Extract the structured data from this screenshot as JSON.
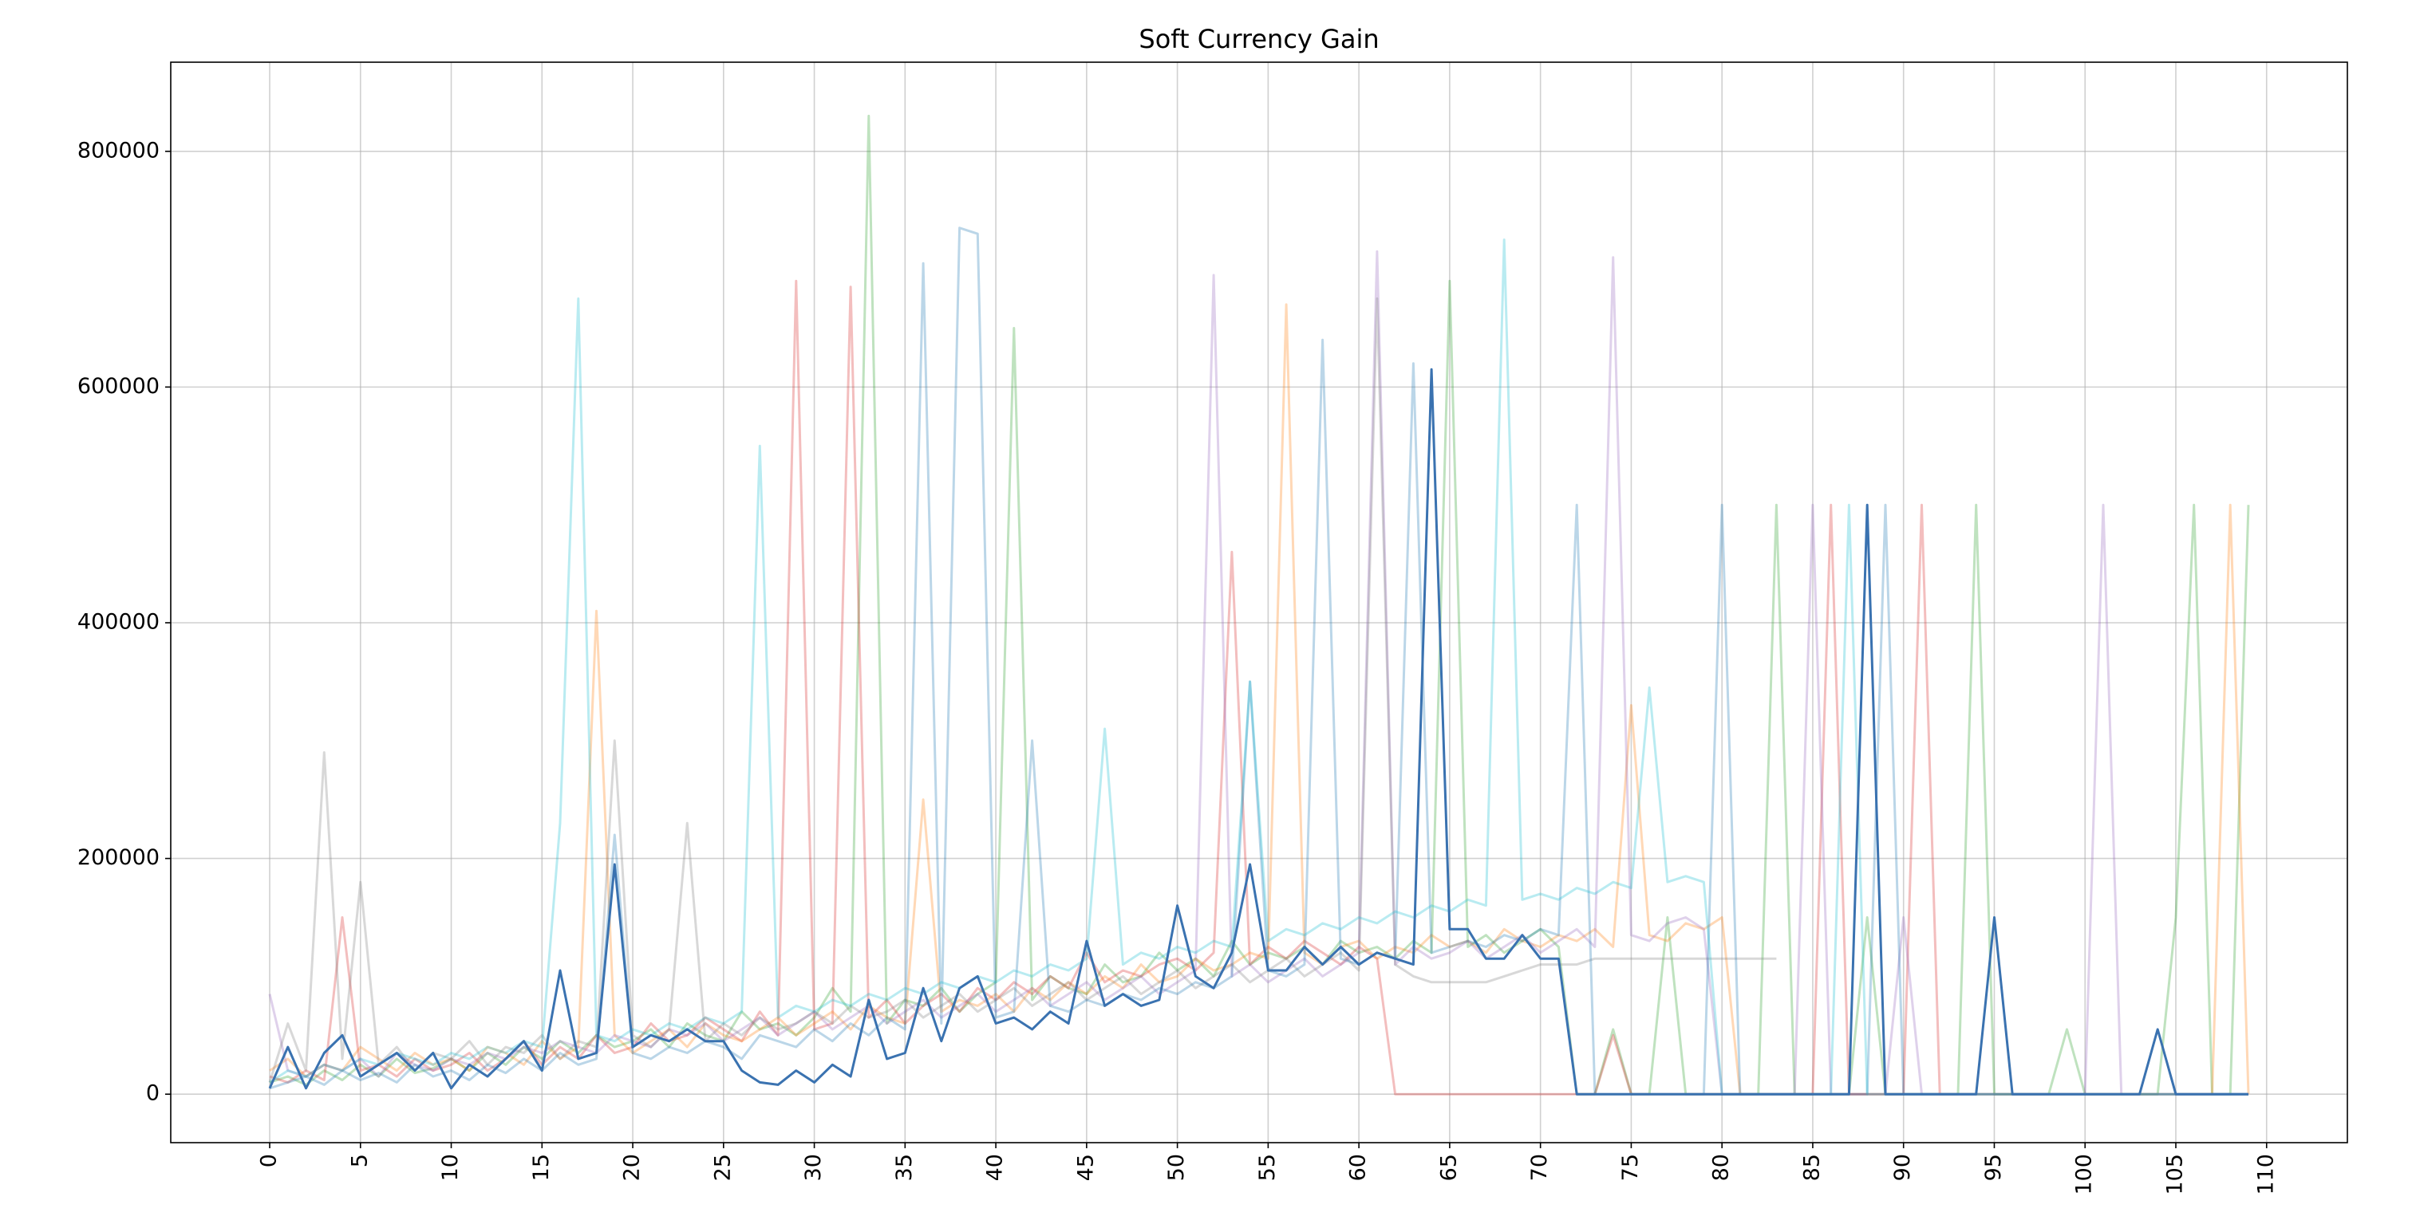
{
  "chart_data": {
    "type": "line",
    "title": "Soft Currency Gain",
    "x": [
      0,
      1,
      2,
      3,
      4,
      5,
      6,
      7,
      8,
      9,
      10,
      11,
      12,
      13,
      14,
      15,
      16,
      17,
      18,
      19,
      20,
      21,
      22,
      23,
      24,
      25,
      26,
      27,
      28,
      29,
      30,
      31,
      32,
      33,
      34,
      35,
      36,
      37,
      38,
      39,
      40,
      41,
      42,
      43,
      44,
      45,
      46,
      47,
      48,
      49,
      50,
      51,
      52,
      53,
      54,
      55,
      56,
      57,
      58,
      59,
      60,
      61,
      62,
      63,
      64,
      65,
      66,
      67,
      68,
      69,
      70,
      71,
      72,
      73,
      74,
      75,
      76,
      77,
      78,
      79,
      80,
      81,
      82,
      83,
      84,
      85,
      86,
      87,
      88,
      89,
      90,
      91,
      92,
      93,
      94,
      95,
      96,
      97,
      98,
      99,
      100,
      101,
      102,
      103,
      104,
      105,
      106,
      107,
      108,
      109
    ],
    "xlim": [
      -5.45,
      114.45
    ],
    "xticks": [
      0,
      5,
      10,
      15,
      20,
      25,
      30,
      35,
      40,
      45,
      50,
      55,
      60,
      65,
      70,
      75,
      80,
      85,
      90,
      95,
      100,
      105,
      110
    ],
    "ylim": [
      -41128,
      875622
    ],
    "yticks": [
      0,
      200000,
      400000,
      600000,
      800000
    ],
    "grid": true,
    "series": [
      {
        "color": "#2ca02c",
        "opacity": 0.3,
        "values": [
          10000,
          15000,
          8000,
          20000,
          12000,
          25000,
          15000,
          30000,
          18000,
          22000,
          30000,
          20000,
          35000,
          25000,
          40000,
          30000,
          45000,
          35000,
          50000,
          40000,
          45000,
          55000,
          40000,
          60000,
          50000,
          45000,
          70000,
          55000,
          60000,
          50000,
          65000,
          90000,
          70000,
          830000,
          60000,
          80000,
          75000,
          90000,
          70000,
          85000,
          95000,
          650000,
          80000,
          100000,
          90000,
          85000,
          110000,
          95000,
          100000,
          120000,
          105000,
          115000,
          100000,
          130000,
          110000,
          120000,
          115000,
          125000,
          110000,
          130000,
          120000,
          125000,
          115000,
          130000,
          120000,
          690000,
          125000,
          135000,
          120000,
          130000,
          140000,
          125000,
          0,
          0,
          55000,
          0,
          0,
          150000,
          0,
          0,
          0,
          0,
          0,
          500000,
          0,
          0,
          0,
          0,
          150000,
          0,
          0,
          0,
          0,
          0,
          500000,
          0,
          0,
          0,
          0,
          55000,
          0,
          0,
          0,
          0,
          0,
          150000,
          500000,
          0,
          0,
          500000
        ]
      },
      {
        "color": "#d62728",
        "opacity": 0.3,
        "values": [
          15000,
          10000,
          20000,
          12000,
          150000,
          20000,
          25000,
          15000,
          30000,
          20000,
          25000,
          35000,
          20000,
          30000,
          45000,
          25000,
          40000,
          30000,
          50000,
          35000,
          40000,
          60000,
          45000,
          50000,
          65000,
          55000,
          45000,
          70000,
          50000,
          690000,
          55000,
          60000,
          685000,
          65000,
          80000,
          60000,
          75000,
          85000,
          70000,
          90000,
          80000,
          95000,
          85000,
          100000,
          90000,
          120000,
          95000,
          105000,
          100000,
          110000,
          115000,
          105000,
          120000,
          460000,
          110000,
          125000,
          115000,
          130000,
          120000,
          110000,
          125000,
          115000,
          0,
          0,
          0,
          0,
          0,
          0,
          0,
          0,
          0,
          0,
          0,
          0,
          50000,
          0,
          0,
          0,
          0,
          0,
          0,
          0,
          0,
          0,
          0,
          0,
          500000,
          0,
          0,
          0,
          0,
          500000,
          0,
          0,
          0,
          0,
          0,
          0,
          0,
          0,
          0,
          0,
          0,
          0,
          0,
          0,
          0,
          0,
          0,
          0
        ]
      },
      {
        "color": "#ff7f0e",
        "opacity": 0.3,
        "values": [
          20000,
          30000,
          15000,
          25000,
          20000,
          40000,
          30000,
          20000,
          35000,
          25000,
          30000,
          20000,
          40000,
          35000,
          25000,
          45000,
          30000,
          40000,
          410000,
          50000,
          35000,
          45000,
          55000,
          40000,
          60000,
          50000,
          45000,
          55000,
          65000,
          50000,
          60000,
          70000,
          55000,
          75000,
          65000,
          60000,
          250000,
          70000,
          80000,
          75000,
          85000,
          70000,
          90000,
          80000,
          95000,
          85000,
          100000,
          90000,
          110000,
          95000,
          100000,
          115000,
          105000,
          110000,
          120000,
          115000,
          670000,
          120000,
          110000,
          125000,
          130000,
          115000,
          125000,
          120000,
          135000,
          125000,
          130000,
          120000,
          140000,
          130000,
          125000,
          135000,
          130000,
          140000,
          125000,
          330000,
          135000,
          130000,
          145000,
          140000,
          150000,
          0,
          0,
          0,
          0,
          0,
          0,
          0,
          0,
          0,
          0,
          0,
          0,
          0,
          0,
          0,
          0,
          0,
          0,
          0,
          0,
          0,
          0,
          0,
          0,
          0,
          0,
          0,
          500000,
          0
        ]
      },
      {
        "color": "#9467bd",
        "opacity": 0.3,
        "values": [
          85000,
          20000,
          15000,
          25000,
          20000,
          30000,
          15000,
          35000,
          25000,
          20000,
          30000,
          25000,
          35000,
          30000,
          40000,
          35000,
          45000,
          40000,
          35000,
          50000,
          45000,
          40000,
          55000,
          50000,
          60000,
          45000,
          55000,
          65000,
          50000,
          60000,
          70000,
          55000,
          65000,
          75000,
          60000,
          70000,
          80000,
          65000,
          75000,
          85000,
          70000,
          80000,
          90000,
          75000,
          85000,
          95000,
          80000,
          90000,
          100000,
          85000,
          95000,
          105000,
          695000,
          100000,
          110000,
          95000,
          105000,
          115000,
          100000,
          110000,
          120000,
          715000,
          110000,
          125000,
          115000,
          120000,
          130000,
          115000,
          125000,
          135000,
          120000,
          130000,
          140000,
          125000,
          710000,
          135000,
          130000,
          145000,
          150000,
          140000,
          0,
          0,
          0,
          0,
          0,
          500000,
          0,
          0,
          0,
          0,
          150000,
          0,
          0,
          0,
          0,
          0,
          0,
          0,
          0,
          0,
          0,
          500000,
          0,
          0,
          0,
          0,
          0,
          0,
          0,
          0
        ]
      },
      {
        "color": "#7f7f7f",
        "opacity": 0.3,
        "values": [
          10000,
          60000,
          20000,
          290000,
          30000,
          180000,
          25000,
          40000,
          20000,
          35000,
          30000,
          45000,
          25000,
          40000,
          35000,
          50000,
          30000,
          45000,
          40000,
          300000,
          50000,
          40000,
          55000,
          230000,
          45000,
          60000,
          50000,
          65000,
          55000,
          60000,
          70000,
          60000,
          75000,
          65000,
          70000,
          80000,
          65000,
          75000,
          85000,
          70000,
          80000,
          90000,
          75000,
          85000,
          95000,
          80000,
          90000,
          100000,
          85000,
          95000,
          105000,
          90000,
          100000,
          110000,
          95000,
          105000,
          115000,
          100000,
          110000,
          120000,
          105000,
          675000,
          110000,
          100000,
          95000,
          95000,
          95000,
          95000,
          100000,
          105000,
          110000,
          110000,
          110000,
          115000,
          115000,
          115000,
          115000,
          115000,
          115000,
          115000,
          115000,
          115000,
          115000,
          115000,
          null,
          null,
          null,
          null,
          null,
          null,
          null,
          null,
          null,
          null,
          null,
          null,
          null,
          null,
          null,
          null,
          null,
          null,
          null,
          null,
          null,
          null,
          null,
          null,
          null,
          null
        ]
      },
      {
        "color": "#1f77b4",
        "opacity": 0.3,
        "values": [
          5000,
          10000,
          15000,
          8000,
          20000,
          12000,
          18000,
          10000,
          25000,
          15000,
          20000,
          12000,
          25000,
          18000,
          30000,
          20000,
          35000,
          25000,
          30000,
          220000,
          35000,
          30000,
          40000,
          35000,
          45000,
          40000,
          30000,
          50000,
          45000,
          40000,
          55000,
          45000,
          60000,
          50000,
          65000,
          55000,
          705000,
          60000,
          735000,
          730000,
          65000,
          70000,
          300000,
          75000,
          70000,
          80000,
          75000,
          85000,
          80000,
          90000,
          85000,
          95000,
          90000,
          100000,
          350000,
          105000,
          100000,
          110000,
          640000,
          115000,
          110000,
          120000,
          115000,
          620000,
          120000,
          125000,
          130000,
          125000,
          135000,
          130000,
          140000,
          135000,
          500000,
          0,
          0,
          0,
          0,
          0,
          0,
          0,
          500000,
          0,
          0,
          0,
          0,
          0,
          0,
          0,
          0,
          500000,
          0,
          0,
          0,
          0,
          0,
          0,
          0,
          0,
          0,
          0,
          0,
          0,
          0,
          0,
          0,
          0,
          0,
          0,
          0,
          0
        ]
      },
      {
        "color": "#17becf",
        "opacity": 0.3,
        "values": [
          10000,
          20000,
          15000,
          25000,
          20000,
          30000,
          25000,
          35000,
          30000,
          25000,
          35000,
          30000,
          40000,
          35000,
          45000,
          40000,
          230000,
          675000,
          50000,
          45000,
          55000,
          50000,
          60000,
          55000,
          65000,
          60000,
          70000,
          550000,
          65000,
          75000,
          70000,
          80000,
          75000,
          85000,
          80000,
          90000,
          85000,
          95000,
          90000,
          100000,
          95000,
          105000,
          100000,
          110000,
          105000,
          115000,
          310000,
          110000,
          120000,
          115000,
          125000,
          120000,
          130000,
          125000,
          350000,
          130000,
          140000,
          135000,
          145000,
          140000,
          150000,
          145000,
          155000,
          150000,
          160000,
          155000,
          165000,
          160000,
          725000,
          165000,
          170000,
          165000,
          175000,
          170000,
          180000,
          175000,
          345000,
          180000,
          185000,
          180000,
          0,
          0,
          0,
          0,
          0,
          0,
          0,
          500000,
          0,
          0,
          0,
          0,
          0,
          0,
          0,
          0,
          0,
          0,
          0,
          0,
          0,
          0,
          0,
          0,
          0,
          0,
          0,
          0,
          0,
          0
        ]
      },
      {
        "color": "#3a72b0",
        "opacity": 1,
        "values": [
          5000,
          40000,
          5000,
          35000,
          50000,
          15000,
          25000,
          35000,
          20000,
          35000,
          5000,
          25000,
          15000,
          30000,
          45000,
          20000,
          105000,
          30000,
          35000,
          195000,
          40000,
          50000,
          45000,
          55000,
          45000,
          45000,
          20000,
          10000,
          8000,
          20000,
          10000,
          25000,
          15000,
          80000,
          30000,
          35000,
          90000,
          45000,
          90000,
          100000,
          60000,
          65000,
          55000,
          70000,
          60000,
          130000,
          75000,
          85000,
          75000,
          80000,
          160000,
          100000,
          90000,
          120000,
          195000,
          105000,
          105000,
          125000,
          110000,
          125000,
          110000,
          120000,
          115000,
          110000,
          615000,
          140000,
          140000,
          115000,
          115000,
          135000,
          115000,
          115000,
          0,
          0,
          0,
          0,
          0,
          0,
          0,
          0,
          0,
          0,
          0,
          0,
          0,
          0,
          0,
          0,
          500000,
          0,
          0,
          0,
          0,
          0,
          0,
          150000,
          0,
          0,
          0,
          0,
          0,
          0,
          0,
          0,
          55000,
          0,
          0,
          0,
          0,
          0
        ]
      }
    ]
  }
}
